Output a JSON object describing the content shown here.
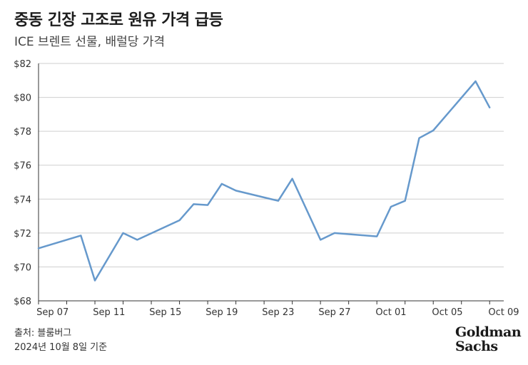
{
  "header": {
    "title": "중동 긴장 고조로 원유 가격 급등",
    "subtitle": "ICE 브렌트 선물, 배럴당 가격"
  },
  "footer": {
    "source": "출처: 블룸버그",
    "date_note": "2024년 10월 8일 기준"
  },
  "logo": {
    "line1": "Goldman",
    "line2": "Sachs"
  },
  "colors": {
    "line": "#6699cc",
    "grid": "#cfcfcf",
    "axis": "#333333"
  },
  "chart_data": {
    "type": "line",
    "title": "중동 긴장 고조로 원유 가격 급등",
    "subtitle": "ICE 브렌트 선물, 배럴당 가격",
    "xlabel": "",
    "ylabel": "",
    "x_ticks": [
      "Sep 07",
      "Sep 11",
      "Sep 15",
      "Sep 19",
      "Sep 23",
      "Sep 27",
      "Oct 01",
      "Oct 05",
      "Oct 09"
    ],
    "y_ticks": [
      "$68",
      "$70",
      "$72",
      "$74",
      "$76",
      "$78",
      "$80",
      "$82"
    ],
    "xlim": [
      "2024-09-06",
      "2024-10-09"
    ],
    "ylim": [
      68,
      82
    ],
    "grid": "horizontal",
    "series": [
      {
        "name": "",
        "x": [
          "2024-09-06",
          "2024-09-09",
          "2024-09-10",
          "2024-09-12",
          "2024-09-13",
          "2024-09-16",
          "2024-09-17",
          "2024-09-18",
          "2024-09-19",
          "2024-09-20",
          "2024-09-23",
          "2024-09-24",
          "2024-09-26",
          "2024-09-27",
          "2024-09-30",
          "2024-10-01",
          "2024-10-02",
          "2024-10-03",
          "2024-10-04",
          "2024-10-07",
          "2024-10-08"
        ],
        "y": [
          71.1,
          71.85,
          69.2,
          72.0,
          71.6,
          72.75,
          73.7,
          73.65,
          74.9,
          74.5,
          73.9,
          75.2,
          71.6,
          72.0,
          71.8,
          73.55,
          73.9,
          77.6,
          78.05,
          80.95,
          79.4
        ]
      }
    ]
  }
}
